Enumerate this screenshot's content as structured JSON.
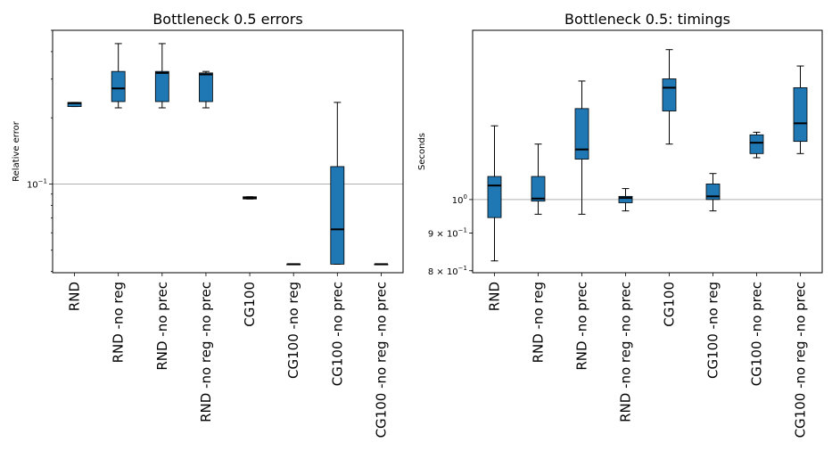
{
  "chart_data": [
    {
      "type": "box",
      "title": "Bottleneck 0.5 errors",
      "ylabel": "Relative error",
      "xlabel": "",
      "yscale": "log",
      "ylim": [
        0.0395,
        0.5
      ],
      "ytick_labels": [
        {
          "value": 0.1,
          "base": "10",
          "exp": "−1"
        }
      ],
      "grid": "y at 0.1",
      "categories": [
        "RND",
        "RND -no reg",
        "RND -no prec",
        "RND -no reg -no prec",
        "CG100",
        "CG100 -no reg",
        "CG100 -no prec",
        "CG100 -no reg -no prec"
      ],
      "boxes": [
        {
          "whislo": 0.225,
          "q1": 0.225,
          "med": 0.233,
          "q3": 0.235,
          "whishi": 0.235
        },
        {
          "whislo": 0.222,
          "q1": 0.237,
          "med": 0.272,
          "q3": 0.325,
          "whishi": 0.435
        },
        {
          "whislo": 0.222,
          "q1": 0.237,
          "med": 0.32,
          "q3": 0.325,
          "whishi": 0.435
        },
        {
          "whislo": 0.222,
          "q1": 0.237,
          "med": 0.315,
          "q3": 0.32,
          "whishi": 0.325
        },
        {
          "whislo": 0.0855,
          "q1": 0.0855,
          "med": 0.0865,
          "q3": 0.0875,
          "whishi": 0.0875
        },
        {
          "whislo": 0.0432,
          "q1": 0.0432,
          "med": 0.0432,
          "q3": 0.0432,
          "whishi": 0.0432
        },
        {
          "whislo": 0.0432,
          "q1": 0.0432,
          "med": 0.0622,
          "q3": 0.12,
          "whishi": 0.235
        },
        {
          "whislo": 0.0432,
          "q1": 0.0432,
          "med": 0.0432,
          "q3": 0.0432,
          "whishi": 0.0432
        }
      ]
    },
    {
      "type": "box",
      "title": "Bottleneck 0.5: timings",
      "ylabel": "Seconds",
      "xlabel": "",
      "yscale": "log",
      "ylim": [
        0.795,
        1.7
      ],
      "ytick_labels": [
        {
          "value": 1.0,
          "base": "10",
          "exp": "0"
        },
        {
          "value": 0.9,
          "base": "9 × 10",
          "exp": "−1"
        },
        {
          "value": 0.8,
          "base": "8 × 10",
          "exp": "−1"
        }
      ],
      "grid": "y at 1.0",
      "categories": [
        "RND",
        "RND -no reg",
        "RND -no prec",
        "RND -no reg -no prec",
        "CG100",
        "CG100 -no reg",
        "CG100 -no prec",
        "CG100 -no reg -no prec"
      ],
      "boxes": [
        {
          "whislo": 0.825,
          "q1": 0.945,
          "med": 1.045,
          "q3": 1.075,
          "whishi": 1.26
        },
        {
          "whislo": 0.955,
          "q1": 0.995,
          "med": 1.003,
          "q3": 1.075,
          "whishi": 1.19
        },
        {
          "whislo": 0.955,
          "q1": 1.135,
          "med": 1.17,
          "q3": 1.33,
          "whishi": 1.45
        },
        {
          "whislo": 0.965,
          "q1": 0.99,
          "med": 1.005,
          "q3": 1.01,
          "whishi": 1.035
        },
        {
          "whislo": 1.19,
          "q1": 1.32,
          "med": 1.42,
          "q3": 1.46,
          "whishi": 1.6
        },
        {
          "whislo": 0.965,
          "q1": 1.0,
          "med": 1.01,
          "q3": 1.05,
          "whishi": 1.085
        },
        {
          "whislo": 1.14,
          "q1": 1.155,
          "med": 1.195,
          "q3": 1.225,
          "whishi": 1.235
        },
        {
          "whislo": 1.155,
          "q1": 1.2,
          "med": 1.27,
          "q3": 1.42,
          "whishi": 1.52
        }
      ]
    }
  ],
  "colors": {
    "box_fill": "#1f77b4",
    "median": "#000000",
    "grid": "#b0b0b0"
  }
}
